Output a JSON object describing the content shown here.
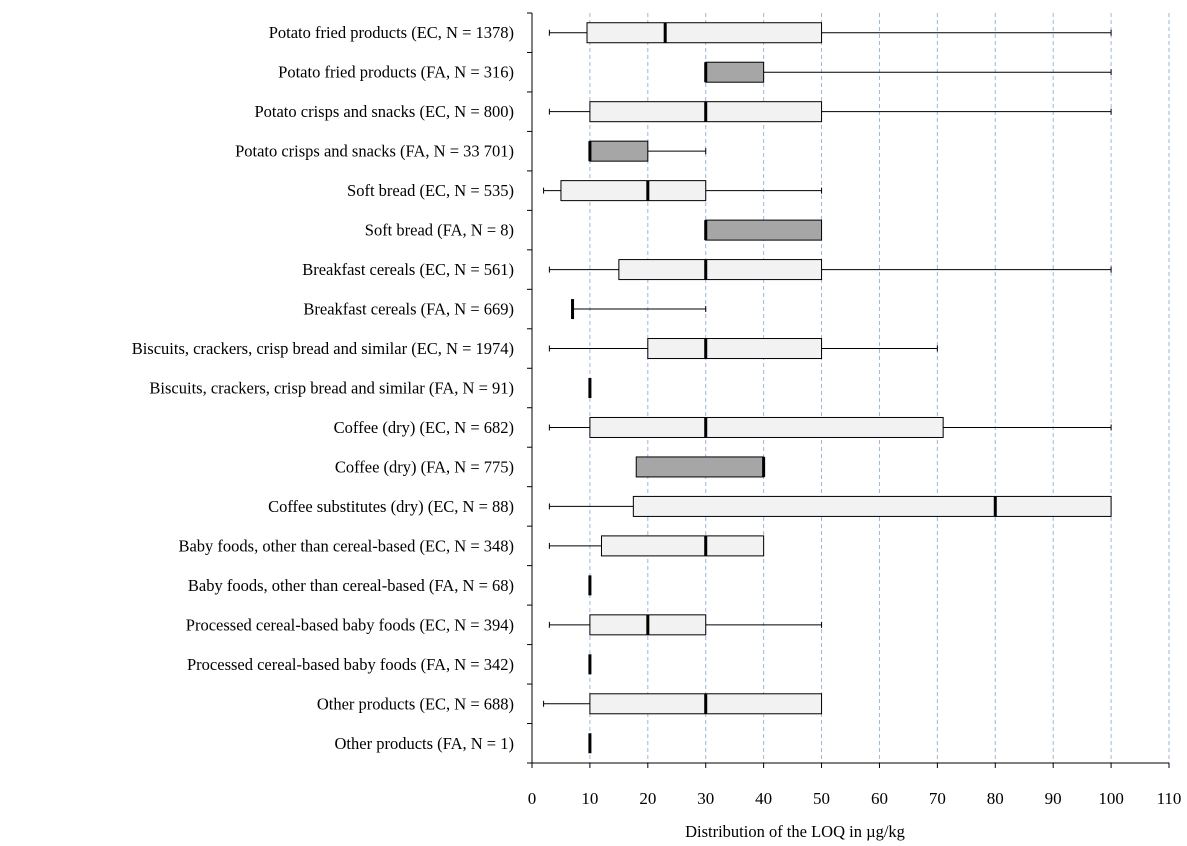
{
  "chart_data": {
    "type": "boxplot",
    "orientation": "horizontal",
    "xlabel": "Distribution of the LOQ in µg/kg",
    "xlim": [
      0,
      110
    ],
    "xticks": [
      0,
      10,
      20,
      30,
      40,
      50,
      60,
      70,
      80,
      90,
      100,
      110
    ],
    "grid": "vertical dashed lines",
    "colors": {
      "EC": "#f2f2f2",
      "FA": "#a6a6a6",
      "grid": "#9bb6dd",
      "edge": "#000000"
    },
    "series": [
      {
        "label": "Potato fried products (EC, N = 1378)",
        "group": "EC",
        "min": 3,
        "q1": 9.5,
        "median": 23,
        "q3": 50,
        "max": 100
      },
      {
        "label": "Potato fried products (FA, N = 316)",
        "group": "FA",
        "min": 30,
        "q1": 30,
        "median": 30,
        "q3": 40,
        "max": 100
      },
      {
        "label": "Potato crisps and snacks (EC, N = 800)",
        "group": "EC",
        "min": 3,
        "q1": 10,
        "median": 30,
        "q3": 50,
        "max": 100
      },
      {
        "label": "Potato crisps and snacks (FA, N = 33 701)",
        "group": "FA",
        "min": 10,
        "q1": 10,
        "median": 10,
        "q3": 20,
        "max": 30
      },
      {
        "label": "Soft bread (EC, N = 535)",
        "group": "EC",
        "min": 2,
        "q1": 5,
        "median": 20,
        "q3": 30,
        "max": 50
      },
      {
        "label": "Soft bread (FA, N = 8)",
        "group": "FA",
        "min": 30,
        "q1": 30,
        "median": 30,
        "q3": 50,
        "max": 50
      },
      {
        "label": "Breakfast cereals (EC, N = 561)",
        "group": "EC",
        "min": 3,
        "q1": 15,
        "median": 30,
        "q3": 50,
        "max": 100
      },
      {
        "label": "Breakfast cereals (FA, N = 669)",
        "group": "FA",
        "min": 7,
        "q1": 7,
        "median": 7,
        "q3": 7,
        "max": 30
      },
      {
        "label": "Biscuits, crackers, crisp bread and similar (EC, N = 1974)",
        "group": "EC",
        "min": 3,
        "q1": 20,
        "median": 30,
        "q3": 50,
        "max": 70
      },
      {
        "label": "Biscuits, crackers, crisp bread and similar (FA, N = 91)",
        "group": "FA",
        "min": 10,
        "q1": 10,
        "median": 10,
        "q3": 10,
        "max": 10
      },
      {
        "label": "Coffee (dry) (EC, N = 682)",
        "group": "EC",
        "min": 3,
        "q1": 10,
        "median": 30,
        "q3": 71,
        "max": 100
      },
      {
        "label": "Coffee (dry) (FA, N = 775)",
        "group": "FA",
        "min": 18,
        "q1": 18,
        "median": 40,
        "q3": 40,
        "max": 40
      },
      {
        "label": "Coffee substitutes (dry) (EC, N = 88)",
        "group": "EC",
        "min": 3,
        "q1": 17.5,
        "median": 80,
        "q3": 100,
        "max": 100
      },
      {
        "label": "Baby foods, other than cereal-based (EC, N = 348)",
        "group": "EC",
        "min": 3,
        "q1": 12,
        "median": 30,
        "q3": 40,
        "max": 40
      },
      {
        "label": "Baby foods, other than cereal-based (FA, N = 68)",
        "group": "FA",
        "min": 10,
        "q1": 10,
        "median": 10,
        "q3": 10,
        "max": 10
      },
      {
        "label": "Processed cereal-based baby foods (EC, N = 394)",
        "group": "EC",
        "min": 3,
        "q1": 10,
        "median": 20,
        "q3": 30,
        "max": 50
      },
      {
        "label": "Processed cereal-based baby foods (FA, N = 342)",
        "group": "FA",
        "min": 10,
        "q1": 10,
        "median": 10,
        "q3": 10,
        "max": 10
      },
      {
        "label": "Other products (EC, N = 688)",
        "group": "EC",
        "min": 2,
        "q1": 10,
        "median": 30,
        "q3": 50,
        "max": 50
      },
      {
        "label": "Other products (FA, N = 1)",
        "group": "FA",
        "min": 10,
        "q1": 10,
        "median": 10,
        "q3": 10,
        "max": 10
      }
    ]
  }
}
